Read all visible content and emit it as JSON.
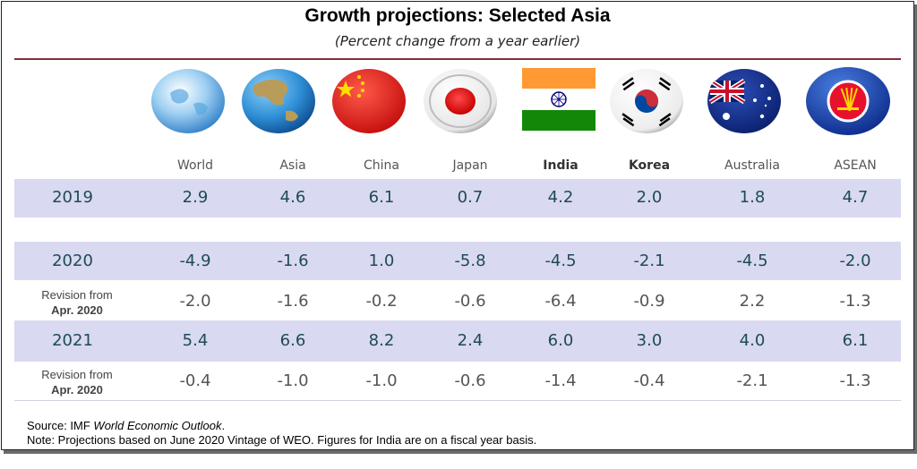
{
  "chart_data": {
    "type": "table",
    "title": "Growth projections: Selected Asia",
    "subtitle": "(Percent change from a year earlier)",
    "columns": [
      "World",
      "Asia",
      "China",
      "Japan",
      "India",
      "Korea",
      "Australia",
      "ASEAN"
    ],
    "rows": [
      {
        "label": "2019",
        "values": [
          "2.9",
          "4.6",
          "6.1",
          "0.7",
          "4.2",
          "2.0",
          "1.8",
          "4.7"
        ]
      },
      {
        "label": "2020",
        "values": [
          "-4.9",
          "-1.6",
          "1.0",
          "-5.8",
          "-4.5",
          "-2.1",
          "-4.5",
          "-2.0"
        ]
      },
      {
        "label_line1": "Revision from",
        "label_line2": "Apr. 2020",
        "values": [
          "-2.0",
          "-1.6",
          "-0.2",
          "-0.6",
          "-6.4",
          "-0.9",
          "2.2",
          "-1.3"
        ]
      },
      {
        "label": "2021",
        "values": [
          "5.4",
          "6.6",
          "8.2",
          "2.4",
          "6.0",
          "3.0",
          "4.0",
          "6.1"
        ]
      },
      {
        "label_line1": "Revision from",
        "label_line2": "Apr. 2020",
        "values": [
          "-0.4",
          "-1.0",
          "-1.0",
          "-0.6",
          "-1.4",
          "-0.4",
          "-2.1",
          "-1.3"
        ]
      }
    ]
  },
  "icons": [
    "globe-world-icon",
    "globe-asia-icon",
    "china-flag-icon",
    "japan-flag-icon",
    "india-flag-icon",
    "korea-flag-icon",
    "australia-flag-icon",
    "asean-flag-icon"
  ],
  "colors": {
    "band": "#d9d9f2",
    "rule": "#8a2b3a",
    "value_text": "#1f4a55"
  },
  "source": {
    "prefix": "Source: IMF ",
    "publication": "World Economic Outlook",
    "suffix": ".",
    "note": "Note: Projections based on June 2020 Vintage of WEO. Figures for India are on a fiscal year basis."
  }
}
